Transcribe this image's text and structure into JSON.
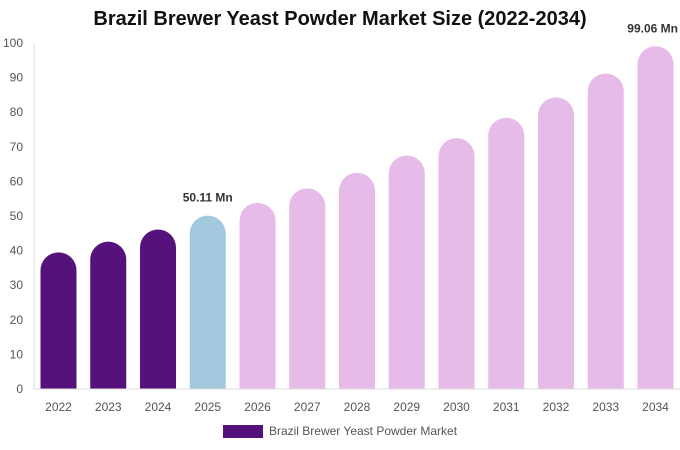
{
  "chart_data": {
    "type": "bar",
    "title": "Brazil Brewer Yeast Powder Market Size (2022-2034)",
    "categories": [
      "2022",
      "2023",
      "2024",
      "2025",
      "2026",
      "2027",
      "2028",
      "2029",
      "2030",
      "2031",
      "2032",
      "2033",
      "2034"
    ],
    "series": [
      {
        "name": "Brazil Brewer Yeast Powder Market",
        "values": [
          39.5,
          42.6,
          46.1,
          50.11,
          53.8,
          58.0,
          62.5,
          67.5,
          72.5,
          78.4,
          84.3,
          91.2,
          99.06
        ]
      }
    ],
    "ylim": [
      0,
      100
    ],
    "yticks": [
      0,
      10,
      20,
      30,
      40,
      50,
      60,
      70,
      80,
      90,
      100
    ],
    "data_labels": [
      {
        "category": "2025",
        "text": "50.11 Mn"
      },
      {
        "category": "2034",
        "text": "99.06 Mn"
      }
    ],
    "colors": {
      "historical": "#54127a",
      "current": "#a3c9de",
      "forecast": "#e6bbe8"
    },
    "color_by_category": [
      "historical",
      "historical",
      "historical",
      "current",
      "forecast",
      "forecast",
      "forecast",
      "forecast",
      "forecast",
      "forecast",
      "forecast",
      "forecast",
      "forecast"
    ],
    "legend": {
      "label": "Brazil Brewer Yeast Powder Market",
      "color": "#54127a",
      "placement": "bottom-center"
    },
    "grid": false
  }
}
